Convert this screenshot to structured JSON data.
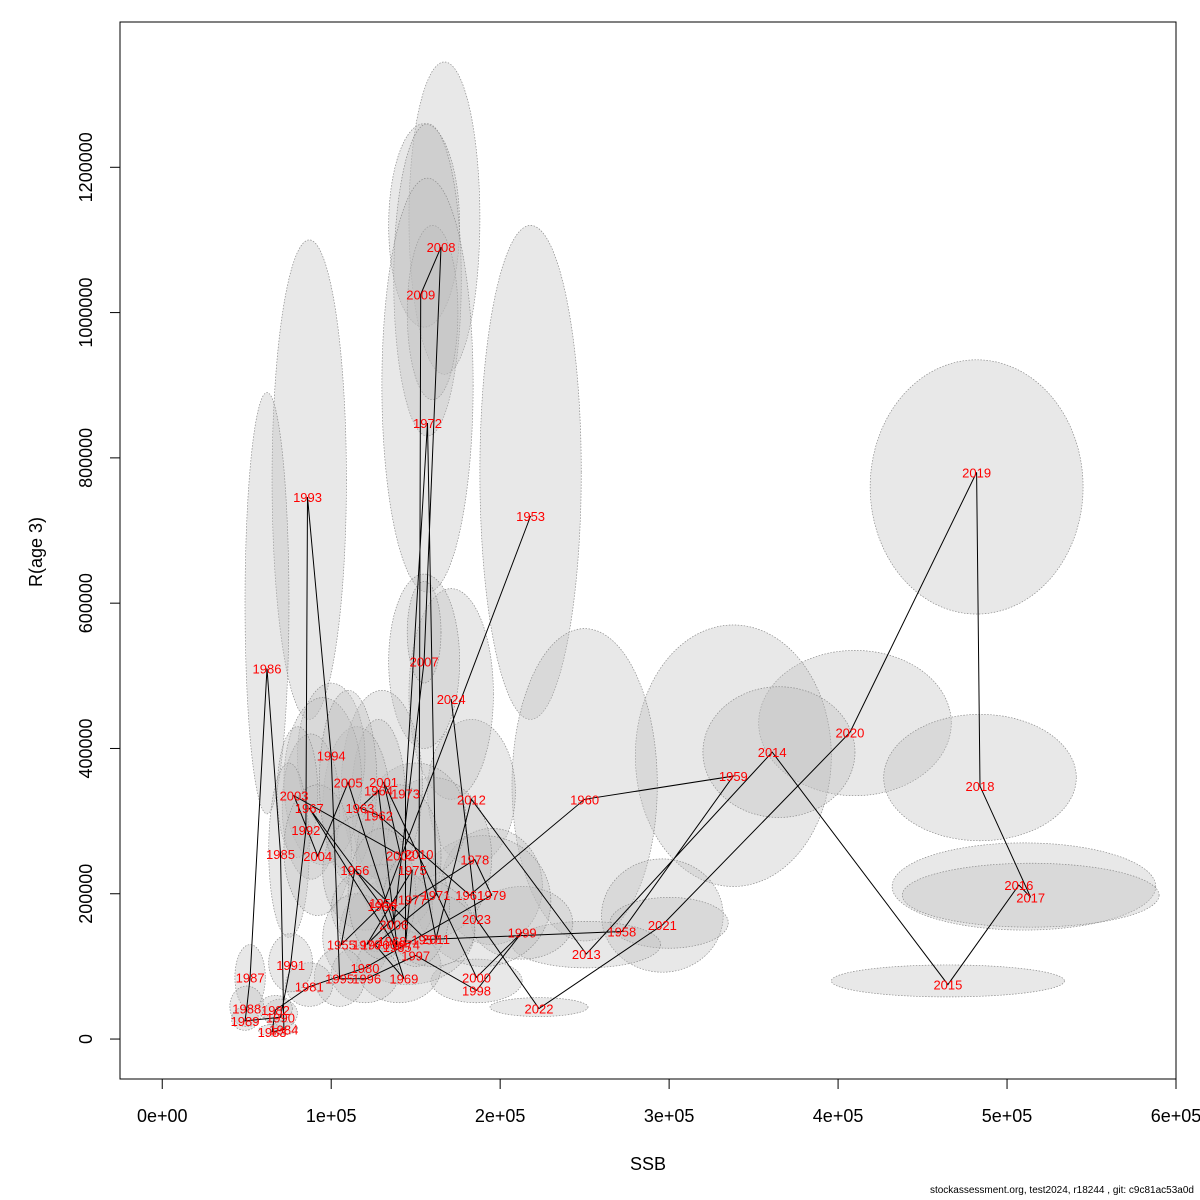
{
  "chart_data": {
    "type": "scatter",
    "xlabel": "SSB",
    "ylabel": "R(age 3)",
    "xlim": [
      -25000,
      600000
    ],
    "ylim": [
      -55000,
      1400000
    ],
    "x_ticks": [
      {
        "value": 0,
        "label": "0e+00"
      },
      {
        "value": 100000,
        "label": "1e+05"
      },
      {
        "value": 200000,
        "label": "2e+05"
      },
      {
        "value": 300000,
        "label": "3e+05"
      },
      {
        "value": 400000,
        "label": "4e+05"
      },
      {
        "value": 500000,
        "label": "5e+05"
      },
      {
        "value": 600000,
        "label": "6e+05"
      }
    ],
    "y_ticks": [
      {
        "value": 0,
        "label": "0"
      },
      {
        "value": 200000,
        "label": "200000"
      },
      {
        "value": 400000,
        "label": "400000"
      },
      {
        "value": 600000,
        "label": "600000"
      },
      {
        "value": 800000,
        "label": "800000"
      },
      {
        "value": 1000000,
        "label": "1000000"
      },
      {
        "value": 1200000,
        "label": "1200000"
      }
    ],
    "ellipse_color": "#bebebe",
    "label_color": "#ff0000",
    "line_color": "#000000",
    "points": [
      {
        "year": "1953",
        "x": 218000,
        "y": 720000
      },
      {
        "year": "1954",
        "x": 131000,
        "y": 187000
      },
      {
        "year": "1955",
        "x": 106000,
        "y": 130000
      },
      {
        "year": "1956",
        "x": 114000,
        "y": 233000
      },
      {
        "year": "1957",
        "x": 156000,
        "y": 137000
      },
      {
        "year": "1958",
        "x": 272000,
        "y": 148000
      },
      {
        "year": "1959",
        "x": 338000,
        "y": 362000
      },
      {
        "year": "1960",
        "x": 250000,
        "y": 330000
      },
      {
        "year": "1961",
        "x": 182000,
        "y": 198000
      },
      {
        "year": "1962",
        "x": 128000,
        "y": 308000
      },
      {
        "year": "1963",
        "x": 117000,
        "y": 318000
      },
      {
        "year": "1964",
        "x": 128000,
        "y": 342000
      },
      {
        "year": "1965",
        "x": 139000,
        "y": 127000
      },
      {
        "year": "1966",
        "x": 130000,
        "y": 183000
      },
      {
        "year": "1967",
        "x": 87000,
        "y": 318000
      },
      {
        "year": "1968",
        "x": 136000,
        "y": 135000
      },
      {
        "year": "1969",
        "x": 143000,
        "y": 83000
      },
      {
        "year": "1970",
        "x": 126000,
        "y": 130000
      },
      {
        "year": "1971",
        "x": 162000,
        "y": 198000
      },
      {
        "year": "1972",
        "x": 157000,
        "y": 848000
      },
      {
        "year": "1973",
        "x": 144000,
        "y": 338000
      },
      {
        "year": "1974",
        "x": 144000,
        "y": 130000
      },
      {
        "year": "1975",
        "x": 148000,
        "y": 233000
      },
      {
        "year": "1976",
        "x": 121000,
        "y": 130000
      },
      {
        "year": "1977",
        "x": 148000,
        "y": 192000
      },
      {
        "year": "1978",
        "x": 185000,
        "y": 247000
      },
      {
        "year": "1979",
        "x": 195000,
        "y": 198000
      },
      {
        "year": "1980",
        "x": 120000,
        "y": 98000
      },
      {
        "year": "1981",
        "x": 87000,
        "y": 72000
      },
      {
        "year": "1982",
        "x": 67000,
        "y": 40000
      },
      {
        "year": "1983",
        "x": 65000,
        "y": 10000
      },
      {
        "year": "1984",
        "x": 72000,
        "y": 13000
      },
      {
        "year": "1985",
        "x": 70000,
        "y": 255000
      },
      {
        "year": "1986",
        "x": 62000,
        "y": 510000
      },
      {
        "year": "1987",
        "x": 52000,
        "y": 85000
      },
      {
        "year": "1988",
        "x": 50000,
        "y": 42000
      },
      {
        "year": "1989",
        "x": 49000,
        "y": 25000
      },
      {
        "year": "1990",
        "x": 70000,
        "y": 30000
      },
      {
        "year": "1991",
        "x": 76000,
        "y": 102000
      },
      {
        "year": "1992",
        "x": 85000,
        "y": 288000
      },
      {
        "year": "1993",
        "x": 86000,
        "y": 746000
      },
      {
        "year": "1994",
        "x": 100000,
        "y": 390000
      },
      {
        "year": "1995",
        "x": 105000,
        "y": 83000
      },
      {
        "year": "1996",
        "x": 121000,
        "y": 83000
      },
      {
        "year": "1997",
        "x": 150000,
        "y": 115000
      },
      {
        "year": "1998",
        "x": 186000,
        "y": 67000
      },
      {
        "year": "1999",
        "x": 213000,
        "y": 147000
      },
      {
        "year": "2000",
        "x": 186000,
        "y": 85000
      },
      {
        "year": "2001",
        "x": 131000,
        "y": 354000
      },
      {
        "year": "2002",
        "x": 141000,
        "y": 253000
      },
      {
        "year": "2003",
        "x": 78000,
        "y": 335000
      },
      {
        "year": "2004",
        "x": 92000,
        "y": 252000
      },
      {
        "year": "2005",
        "x": 110000,
        "y": 353000
      },
      {
        "year": "2006",
        "x": 137000,
        "y": 158000
      },
      {
        "year": "2007",
        "x": 155000,
        "y": 520000
      },
      {
        "year": "2008",
        "x": 165000,
        "y": 1090000
      },
      {
        "year": "2009",
        "x": 153000,
        "y": 1025000
      },
      {
        "year": "2010",
        "x": 152000,
        "y": 255000
      },
      {
        "year": "2011",
        "x": 162000,
        "y": 138000
      },
      {
        "year": "2012",
        "x": 183000,
        "y": 330000
      },
      {
        "year": "2013",
        "x": 251000,
        "y": 117000
      },
      {
        "year": "2014",
        "x": 361000,
        "y": 395000
      },
      {
        "year": "2015",
        "x": 465000,
        "y": 75000
      },
      {
        "year": "2016",
        "x": 507000,
        "y": 212000
      },
      {
        "year": "2017",
        "x": 514000,
        "y": 195000
      },
      {
        "year": "2018",
        "x": 484000,
        "y": 348000
      },
      {
        "year": "2019",
        "x": 482000,
        "y": 780000
      },
      {
        "year": "2020",
        "x": 407000,
        "y": 422000
      },
      {
        "year": "2021",
        "x": 296000,
        "y": 157000
      },
      {
        "year": "2022",
        "x": 223000,
        "y": 42000
      },
      {
        "year": "2023",
        "x": 186000,
        "y": 165000
      },
      {
        "year": "2024",
        "x": 171000,
        "y": 468000
      }
    ],
    "ellipses": [
      {
        "x": 167000,
        "y": 1130000,
        "rx": 21000,
        "ry": 215000
      },
      {
        "x": 155000,
        "y": 1120000,
        "rx": 21000,
        "ry": 140000
      },
      {
        "x": 157000,
        "y": 1045000,
        "rx": 20000,
        "ry": 215000
      },
      {
        "x": 160000,
        "y": 1000000,
        "rx": 15000,
        "ry": 120000
      },
      {
        "x": 157000,
        "y": 900000,
        "rx": 27000,
        "ry": 285000
      },
      {
        "x": 87000,
        "y": 770000,
        "rx": 22000,
        "ry": 330000
      },
      {
        "x": 62000,
        "y": 600000,
        "rx": 13000,
        "ry": 290000
      },
      {
        "x": 218000,
        "y": 780000,
        "rx": 30000,
        "ry": 340000
      },
      {
        "x": 482000,
        "y": 760000,
        "rx": 63000,
        "ry": 175000
      },
      {
        "x": 410000,
        "y": 435000,
        "rx": 57000,
        "ry": 100000
      },
      {
        "x": 338000,
        "y": 390000,
        "rx": 58000,
        "ry": 180000
      },
      {
        "x": 365000,
        "y": 395000,
        "rx": 45000,
        "ry": 90000
      },
      {
        "x": 250000,
        "y": 350000,
        "rx": 43000,
        "ry": 215000
      },
      {
        "x": 484000,
        "y": 360000,
        "rx": 57000,
        "ry": 87000
      },
      {
        "x": 510000,
        "y": 210000,
        "rx": 78000,
        "ry": 60000
      },
      {
        "x": 514000,
        "y": 198000,
        "rx": 76000,
        "ry": 44000
      },
      {
        "x": 465000,
        "y": 80000,
        "rx": 69000,
        "ry": 22000
      },
      {
        "x": 296000,
        "y": 170000,
        "rx": 36000,
        "ry": 78000
      },
      {
        "x": 300000,
        "y": 160000,
        "rx": 35000,
        "ry": 35000
      },
      {
        "x": 251000,
        "y": 130000,
        "rx": 44000,
        "ry": 32000
      },
      {
        "x": 223000,
        "y": 44000,
        "rx": 29000,
        "ry": 13000
      },
      {
        "x": 183000,
        "y": 340000,
        "rx": 26000,
        "ry": 100000
      },
      {
        "x": 195000,
        "y": 210000,
        "rx": 30000,
        "ry": 80000
      },
      {
        "x": 171000,
        "y": 475000,
        "rx": 25000,
        "ry": 145000
      },
      {
        "x": 155000,
        "y": 520000,
        "rx": 21000,
        "ry": 120000
      },
      {
        "x": 155000,
        "y": 560000,
        "rx": 10000,
        "ry": 70000
      },
      {
        "x": 186000,
        "y": 80000,
        "rx": 27000,
        "ry": 30000
      },
      {
        "x": 213000,
        "y": 160000,
        "rx": 30000,
        "ry": 50000
      },
      {
        "x": 190000,
        "y": 190000,
        "rx": 40000,
        "ry": 90000
      },
      {
        "x": 160000,
        "y": 250000,
        "rx": 35000,
        "ry": 110000
      },
      {
        "x": 145000,
        "y": 150000,
        "rx": 40000,
        "ry": 75000
      },
      {
        "x": 150000,
        "y": 300000,
        "rx": 30000,
        "ry": 80000
      },
      {
        "x": 130000,
        "y": 350000,
        "rx": 24000,
        "ry": 130000
      },
      {
        "x": 128000,
        "y": 330000,
        "rx": 16000,
        "ry": 110000
      },
      {
        "x": 115000,
        "y": 320000,
        "rx": 20000,
        "ry": 110000
      },
      {
        "x": 100000,
        "y": 390000,
        "rx": 20000,
        "ry": 100000
      },
      {
        "x": 95000,
        "y": 355000,
        "rx": 23000,
        "ry": 115000
      },
      {
        "x": 88000,
        "y": 320000,
        "rx": 17000,
        "ry": 100000
      },
      {
        "x": 80000,
        "y": 340000,
        "rx": 12000,
        "ry": 90000
      },
      {
        "x": 75000,
        "y": 260000,
        "rx": 12000,
        "ry": 120000
      },
      {
        "x": 92000,
        "y": 260000,
        "rx": 20000,
        "ry": 90000
      },
      {
        "x": 110000,
        "y": 355000,
        "rx": 17000,
        "ry": 125000
      },
      {
        "x": 140000,
        "y": 250000,
        "rx": 25000,
        "ry": 100000
      },
      {
        "x": 120000,
        "y": 230000,
        "rx": 25000,
        "ry": 80000
      },
      {
        "x": 130000,
        "y": 180000,
        "rx": 30000,
        "ry": 60000
      },
      {
        "x": 115000,
        "y": 140000,
        "rx": 20000,
        "ry": 60000
      },
      {
        "x": 140000,
        "y": 100000,
        "rx": 25000,
        "ry": 50000
      },
      {
        "x": 120000,
        "y": 90000,
        "rx": 20000,
        "ry": 40000
      },
      {
        "x": 105000,
        "y": 85000,
        "rx": 15000,
        "ry": 40000
      },
      {
        "x": 160000,
        "y": 150000,
        "rx": 25000,
        "ry": 50000
      },
      {
        "x": 130000,
        "y": 200000,
        "rx": 20000,
        "ry": 90000
      },
      {
        "x": 150000,
        "y": 180000,
        "rx": 20000,
        "ry": 80000
      },
      {
        "x": 87000,
        "y": 75000,
        "rx": 14000,
        "ry": 30000
      },
      {
        "x": 76000,
        "y": 105000,
        "rx": 13000,
        "ry": 40000
      },
      {
        "x": 70000,
        "y": 35000,
        "rx": 10000,
        "ry": 20000
      },
      {
        "x": 67000,
        "y": 42000,
        "rx": 10000,
        "ry": 18000
      },
      {
        "x": 65000,
        "y": 12000,
        "rx": 8000,
        "ry": 8000
      },
      {
        "x": 72000,
        "y": 15000,
        "rx": 8000,
        "ry": 9000
      },
      {
        "x": 52000,
        "y": 85000,
        "rx": 9000,
        "ry": 45000
      },
      {
        "x": 50000,
        "y": 45000,
        "rx": 10000,
        "ry": 28000
      },
      {
        "x": 49000,
        "y": 28000,
        "rx": 8000,
        "ry": 16000
      }
    ],
    "path_order": [
      "1953",
      "1954",
      "1955",
      "1956",
      "1957",
      "1958",
      "1959",
      "1960",
      "1961",
      "1962",
      "1963",
      "1964",
      "1965",
      "1966",
      "1967",
      "1968",
      "1969",
      "1970",
      "1971",
      "1972",
      "1973",
      "1974",
      "1975",
      "1976",
      "1977",
      "1978",
      "1979",
      "1980",
      "1981",
      "1982",
      "1983",
      "1984",
      "1985",
      "1986",
      "1987",
      "1988",
      "1989",
      "1990",
      "1991",
      "1992",
      "1993",
      "1994",
      "1995",
      "1996",
      "1997",
      "1998",
      "1999",
      "2000",
      "2001",
      "2002",
      "2003",
      "2004",
      "2005",
      "2006",
      "2007",
      "2008",
      "2009",
      "2010",
      "2011",
      "2012",
      "2013",
      "2014",
      "2015",
      "2016",
      "2017",
      "2018",
      "2019",
      "2020",
      "2021",
      "2022",
      "2023",
      "2024"
    ]
  },
  "footer": "stockassessment.org, test2024, r18244 , git: c9c81ac53a0d"
}
